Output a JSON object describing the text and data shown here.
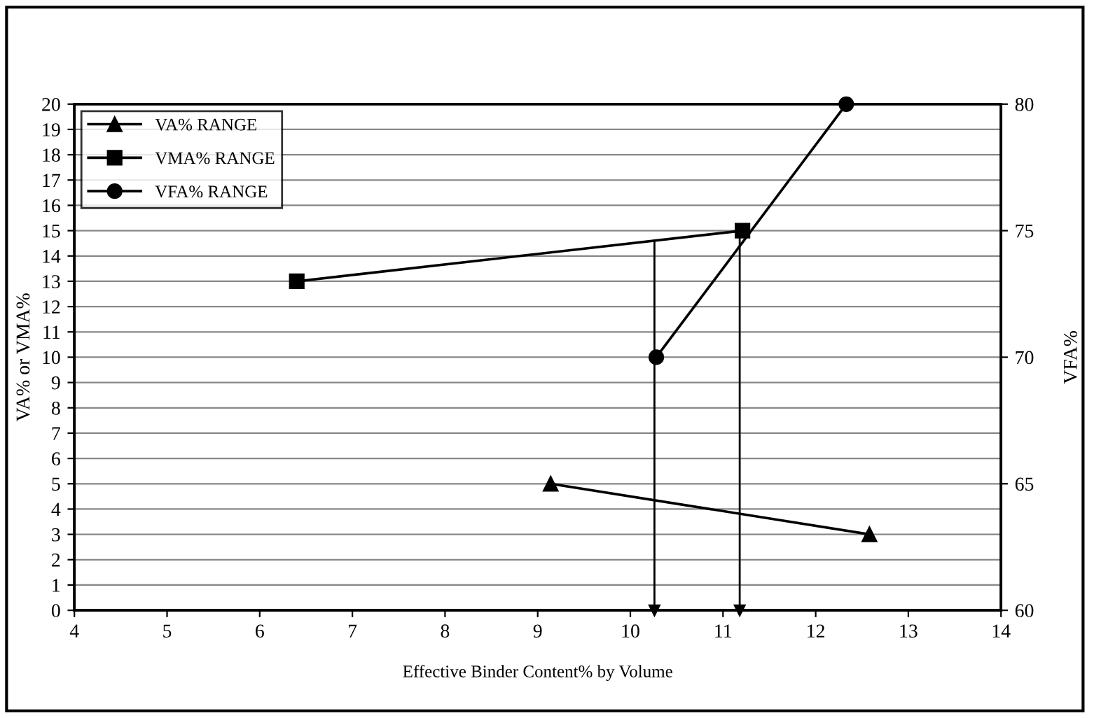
{
  "chart_data": {
    "type": "line",
    "xlabel": "Effective Binder Content% by Volume",
    "ylabel": "VA% or VMA%",
    "y2label": "VFA%",
    "series": [
      {
        "name": "VA% RANGE",
        "color": "#000000",
        "marker": "triangle",
        "x": [
          9.14,
          12.58
        ],
        "values": [
          5,
          3
        ]
      },
      {
        "name": "VMA% RANGE",
        "color": "#000000",
        "marker": "square",
        "x": [
          6.4,
          11.21
        ],
        "values": [
          13,
          15
        ]
      },
      {
        "name": "VFA% RANGE",
        "color": "#000000",
        "marker": "circle",
        "axis": "y2",
        "x": [
          10.28,
          12.33
        ],
        "values": [
          70,
          80
        ]
      }
    ],
    "xlim": [
      4,
      14
    ],
    "xticks": [
      4,
      5,
      6,
      7,
      8,
      9,
      10,
      11,
      12,
      13,
      14
    ],
    "ylim": [
      0,
      20
    ],
    "yticks": [
      0,
      1,
      2,
      3,
      4,
      5,
      6,
      7,
      8,
      9,
      10,
      11,
      12,
      13,
      14,
      15,
      16,
      17,
      18,
      19,
      20
    ],
    "y2lim": [
      60,
      80
    ],
    "y2ticks": [
      60,
      65,
      70,
      75,
      80
    ],
    "ref_lines": [
      {
        "axis": "x",
        "value": 10.26,
        "color": "#000000"
      },
      {
        "axis": "x",
        "value": 11.18,
        "color": "#000000"
      }
    ],
    "grid": "y",
    "legend": "top left",
    "line_style": "solid"
  }
}
